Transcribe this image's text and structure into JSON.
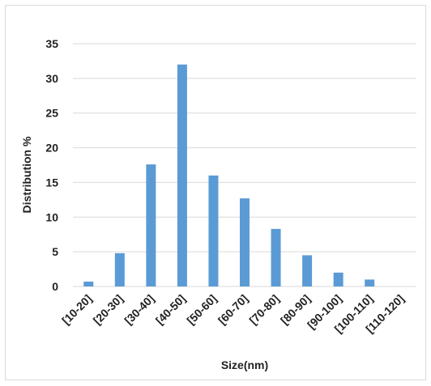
{
  "chart_data": {
    "type": "bar",
    "title": "",
    "xlabel": "Size(nm)",
    "ylabel": "Distribution %",
    "categories": [
      "[10-20]",
      "[20-30]",
      "[30-40]",
      "[40-50]",
      "[50-60]",
      "[60-70]",
      "[70-80]",
      "[80-90]",
      "[90-100]",
      "[100-110]",
      "[110-120]"
    ],
    "values": [
      0.7,
      4.8,
      17.6,
      32.0,
      16.0,
      12.7,
      8.3,
      4.5,
      2.0,
      1.0,
      0.0
    ],
    "ylim": [
      0,
      35
    ],
    "yticks": [
      0,
      5,
      10,
      15,
      20,
      25,
      30,
      35
    ],
    "grid": true,
    "bar_color": "#5b9bd5",
    "grid_color": "#d9d9d9"
  }
}
